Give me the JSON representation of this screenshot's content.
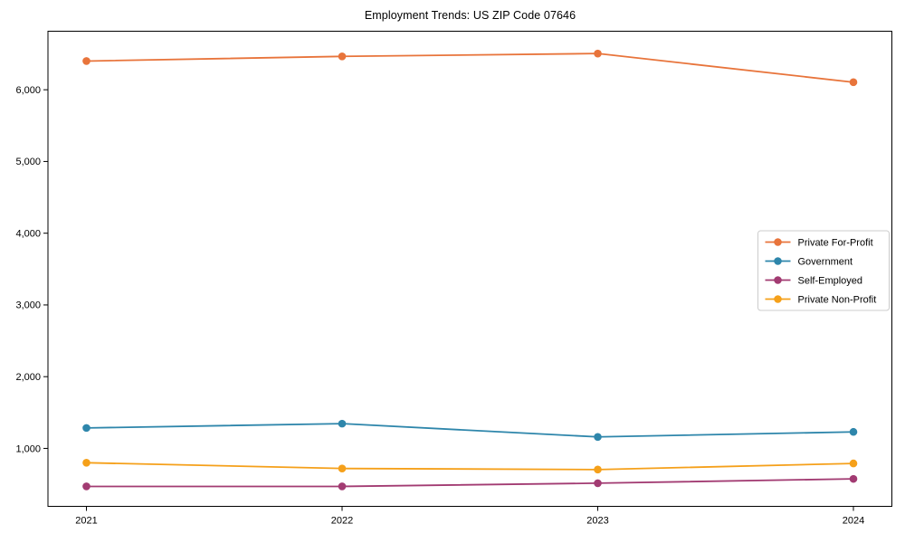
{
  "title": "Employment Trends: US ZIP Code 07646",
  "chart_data": {
    "type": "line",
    "title": "Employment Trends: US ZIP Code 07646",
    "x": [
      "2021",
      "2022",
      "2023",
      "2024"
    ],
    "series": [
      {
        "name": "Private For-Profit",
        "color": "#E8743B",
        "values": [
          6400,
          6465,
          6505,
          6105
        ]
      },
      {
        "name": "Government",
        "color": "#2E86AB",
        "values": [
          1285,
          1345,
          1160,
          1230
        ]
      },
      {
        "name": "Self-Employed",
        "color": "#A23B72",
        "values": [
          470,
          470,
          515,
          575
        ]
      },
      {
        "name": "Private Non-Profit",
        "color": "#F5A01A",
        "values": [
          800,
          720,
          705,
          790
        ]
      }
    ],
    "xlabel": "",
    "ylabel": "",
    "ylim": [
      192,
      6816
    ],
    "yticks": [
      1000,
      2000,
      3000,
      4000,
      5000,
      6000
    ],
    "ytick_labels": [
      "1,000",
      "2,000",
      "3,000",
      "4,000",
      "5,000",
      "6,000"
    ],
    "xtick_labels": [
      "2021",
      "2022",
      "2023",
      "2024"
    ],
    "grid": false,
    "marker": "circle",
    "legend_position": "center-right",
    "axis_color": "#000000",
    "legend_border_color": "#cccccc",
    "background_color": "#ffffff"
  }
}
